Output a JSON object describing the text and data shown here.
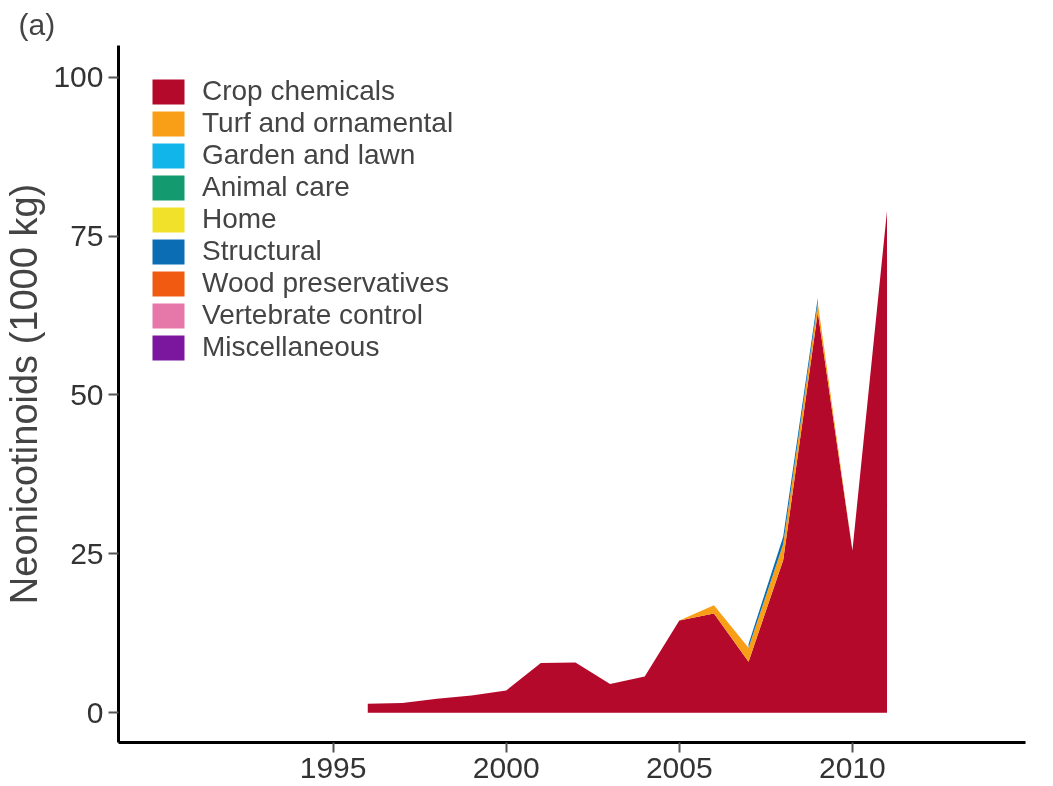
{
  "chart_data": {
    "type": "area",
    "stacked": true,
    "ylabel": "Neonicotinoids (1000 kg)",
    "annotations": [
      "(a)"
    ],
    "x": [
      1996,
      1997,
      1998,
      1999,
      2000,
      2001,
      2002,
      2003,
      2004,
      2005,
      2006,
      2007,
      2008,
      2009,
      2010,
      2011
    ],
    "xlim": [
      1988.8,
      2015
    ],
    "xticks": [
      1995,
      2000,
      2005,
      2010
    ],
    "ylim": [
      -4.7,
      105
    ],
    "yticks": [
      0,
      25,
      50,
      75,
      100
    ],
    "grid": false,
    "legend": "top left",
    "series": [
      {
        "name": "Crop chemicals",
        "color": "#b5092b",
        "values": [
          1.4,
          1.5,
          2.2,
          2.7,
          3.5,
          7.8,
          7.9,
          4.5,
          5.7,
          14.5,
          15.6,
          8,
          24,
          63,
          25.5,
          79
        ]
      },
      {
        "name": "Turf and ornamental",
        "color": "#f99f17",
        "values": [
          0,
          0,
          0,
          0,
          0,
          0,
          0,
          0,
          0,
          0,
          1.3,
          2.2,
          2.5,
          1.5,
          0,
          0
        ]
      },
      {
        "name": "Garden and lawn",
        "color": "#12b5ea",
        "values": [
          null,
          null,
          null,
          null,
          null,
          null,
          null,
          null,
          null,
          null,
          null,
          null,
          null,
          null,
          null,
          null
        ]
      },
      {
        "name": "Animal care",
        "color": "#139a6e",
        "values": [
          null,
          null,
          null,
          null,
          null,
          null,
          null,
          null,
          null,
          null,
          null,
          null,
          null,
          null,
          null,
          null
        ]
      },
      {
        "name": "Home",
        "color": "#f1e12a",
        "values": [
          null,
          null,
          null,
          null,
          null,
          null,
          null,
          null,
          null,
          null,
          null,
          null,
          null,
          null,
          null,
          null
        ]
      },
      {
        "name": "Structural",
        "color": "#0b6eb4",
        "values": [
          null,
          null,
          null,
          null,
          null,
          null,
          null,
          null,
          null,
          null,
          null,
          0.6,
          1.2,
          0.8,
          null,
          null
        ]
      },
      {
        "name": "Wood preservatives",
        "color": "#f15a11",
        "values": [
          null,
          null,
          null,
          null,
          null,
          null,
          null,
          null,
          null,
          null,
          null,
          null,
          null,
          null,
          null,
          null
        ]
      },
      {
        "name": "Vertebrate control",
        "color": "#e578a8",
        "values": [
          null,
          null,
          null,
          null,
          null,
          null,
          null,
          null,
          null,
          null,
          null,
          null,
          null,
          null,
          null,
          null
        ]
      },
      {
        "name": "Miscellaneous",
        "color": "#7b179f",
        "values": [
          null,
          null,
          null,
          null,
          null,
          null,
          null,
          null,
          null,
          null,
          null,
          null,
          null,
          null,
          null,
          null
        ]
      }
    ]
  }
}
